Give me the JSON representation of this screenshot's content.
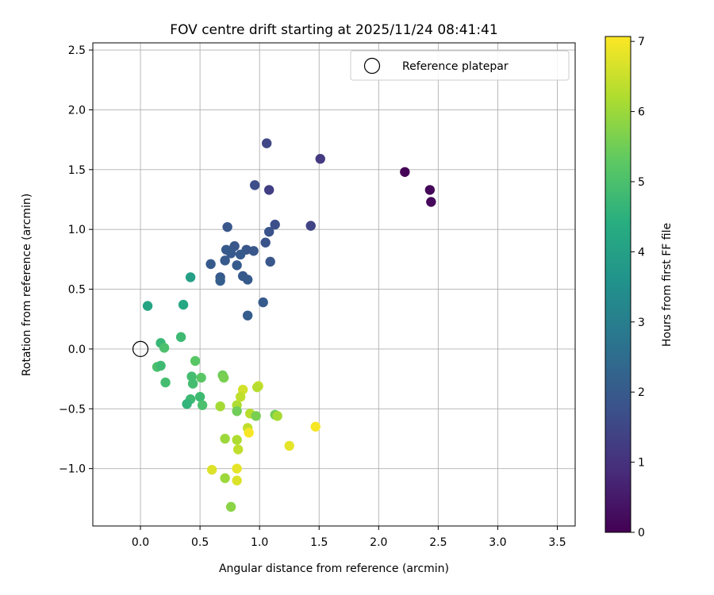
{
  "chart_data": {
    "type": "scatter",
    "title": "FOV centre drift starting at 2025/11/24 08:41:41",
    "xlabel": "Angular distance from reference (arcmin)",
    "ylabel": "Rotation from reference (arcmin)",
    "xlim": [
      -0.4,
      3.65
    ],
    "ylim": [
      -1.48,
      2.56
    ],
    "xticks": [
      0.0,
      0.5,
      1.0,
      1.5,
      2.0,
      2.5,
      3.0,
      3.5
    ],
    "xtick_labels": [
      "0.0",
      "0.5",
      "1.0",
      "1.5",
      "2.0",
      "2.5",
      "3.0",
      "3.5"
    ],
    "yticks": [
      -1.0,
      -0.5,
      0.0,
      0.5,
      1.0,
      1.5,
      2.0,
      2.5
    ],
    "ytick_labels": [
      "−1.0",
      "−0.5",
      "0.0",
      "0.5",
      "1.0",
      "1.5",
      "2.0",
      "2.5"
    ],
    "grid": true,
    "legend": {
      "position": "top-right",
      "label": "Reference platepar"
    },
    "reference_point": {
      "x": 0.0,
      "y": 0.0
    },
    "colorbar": {
      "label": "Hours from first FF file",
      "range": [
        0,
        7.07
      ],
      "ticks": [
        0,
        1,
        2,
        3,
        4,
        5,
        6,
        7
      ],
      "tick_labels": [
        "0",
        "1",
        "2",
        "3",
        "4",
        "5",
        "6",
        "7"
      ],
      "colormap": "viridis"
    },
    "points": [
      {
        "x": 2.22,
        "y": 1.48,
        "c": 0.05
      },
      {
        "x": 2.43,
        "y": 1.33,
        "c": 0.1
      },
      {
        "x": 2.44,
        "y": 1.23,
        "c": 0.15
      },
      {
        "x": 1.51,
        "y": 1.59,
        "c": 1.2
      },
      {
        "x": 1.06,
        "y": 1.72,
        "c": 1.5
      },
      {
        "x": 1.08,
        "y": 1.33,
        "c": 1.3
      },
      {
        "x": 0.96,
        "y": 1.37,
        "c": 1.7
      },
      {
        "x": 1.43,
        "y": 1.03,
        "c": 1.4
      },
      {
        "x": 1.13,
        "y": 1.04,
        "c": 1.7
      },
      {
        "x": 1.08,
        "y": 0.98,
        "c": 1.8
      },
      {
        "x": 1.05,
        "y": 0.89,
        "c": 1.8
      },
      {
        "x": 0.73,
        "y": 1.02,
        "c": 1.9
      },
      {
        "x": 0.79,
        "y": 0.86,
        "c": 1.9
      },
      {
        "x": 0.72,
        "y": 0.83,
        "c": 2.0
      },
      {
        "x": 0.89,
        "y": 0.83,
        "c": 1.9
      },
      {
        "x": 0.95,
        "y": 0.82,
        "c": 1.9
      },
      {
        "x": 0.76,
        "y": 0.8,
        "c": 2.0
      },
      {
        "x": 0.84,
        "y": 0.79,
        "c": 2.0
      },
      {
        "x": 0.71,
        "y": 0.74,
        "c": 2.0
      },
      {
        "x": 1.09,
        "y": 0.73,
        "c": 1.9
      },
      {
        "x": 0.59,
        "y": 0.71,
        "c": 2.0
      },
      {
        "x": 0.81,
        "y": 0.7,
        "c": 2.0
      },
      {
        "x": 0.67,
        "y": 0.6,
        "c": 2.0
      },
      {
        "x": 0.86,
        "y": 0.61,
        "c": 2.0
      },
      {
        "x": 0.9,
        "y": 0.58,
        "c": 2.0
      },
      {
        "x": 0.67,
        "y": 0.57,
        "c": 2.1
      },
      {
        "x": 1.03,
        "y": 0.39,
        "c": 2.0
      },
      {
        "x": 0.9,
        "y": 0.28,
        "c": 2.1
      },
      {
        "x": 0.42,
        "y": 0.6,
        "c": 4.0
      },
      {
        "x": 0.06,
        "y": 0.36,
        "c": 4.1
      },
      {
        "x": 0.36,
        "y": 0.37,
        "c": 4.2
      },
      {
        "x": 0.34,
        "y": 0.1,
        "c": 4.8
      },
      {
        "x": 0.17,
        "y": 0.05,
        "c": 4.7
      },
      {
        "x": 0.2,
        "y": 0.01,
        "c": 5.0
      },
      {
        "x": 0.14,
        "y": -0.15,
        "c": 5.0
      },
      {
        "x": 0.17,
        "y": -0.14,
        "c": 4.8
      },
      {
        "x": 0.21,
        "y": -0.28,
        "c": 4.9
      },
      {
        "x": 0.46,
        "y": -0.1,
        "c": 5.2
      },
      {
        "x": 0.43,
        "y": -0.23,
        "c": 4.9
      },
      {
        "x": 0.51,
        "y": -0.24,
        "c": 5.2
      },
      {
        "x": 0.44,
        "y": -0.29,
        "c": 4.9
      },
      {
        "x": 0.5,
        "y": -0.4,
        "c": 4.8
      },
      {
        "x": 0.42,
        "y": -0.42,
        "c": 4.8
      },
      {
        "x": 0.39,
        "y": -0.46,
        "c": 4.6
      },
      {
        "x": 0.52,
        "y": -0.47,
        "c": 5.0
      },
      {
        "x": 0.69,
        "y": -0.22,
        "c": 5.5
      },
      {
        "x": 0.7,
        "y": -0.24,
        "c": 5.6
      },
      {
        "x": 0.67,
        "y": -0.48,
        "c": 6.1
      },
      {
        "x": 0.81,
        "y": -0.47,
        "c": 6.2
      },
      {
        "x": 0.81,
        "y": -0.52,
        "c": 5.5
      },
      {
        "x": 0.86,
        "y": -0.34,
        "c": 6.6
      },
      {
        "x": 0.84,
        "y": -0.4,
        "c": 6.4
      },
      {
        "x": 0.99,
        "y": -0.31,
        "c": 6.5
      },
      {
        "x": 0.98,
        "y": -0.32,
        "c": 6.3
      },
      {
        "x": 0.92,
        "y": -0.54,
        "c": 6.3
      },
      {
        "x": 0.97,
        "y": -0.56,
        "c": 5.6
      },
      {
        "x": 1.13,
        "y": -0.55,
        "c": 5.5
      },
      {
        "x": 1.15,
        "y": -0.56,
        "c": 6.1
      },
      {
        "x": 0.9,
        "y": -0.66,
        "c": 6.4
      },
      {
        "x": 0.91,
        "y": -0.7,
        "c": 7.0
      },
      {
        "x": 1.47,
        "y": -0.65,
        "c": 7.0
      },
      {
        "x": 1.25,
        "y": -0.81,
        "c": 6.8
      },
      {
        "x": 0.71,
        "y": -0.75,
        "c": 6.0
      },
      {
        "x": 0.81,
        "y": -0.76,
        "c": 6.2
      },
      {
        "x": 0.82,
        "y": -0.84,
        "c": 6.4
      },
      {
        "x": 0.6,
        "y": -1.01,
        "c": 6.7
      },
      {
        "x": 0.81,
        "y": -1.0,
        "c": 6.8
      },
      {
        "x": 0.71,
        "y": -1.08,
        "c": 6.0
      },
      {
        "x": 0.81,
        "y": -1.1,
        "c": 6.7
      },
      {
        "x": 0.76,
        "y": -1.32,
        "c": 5.8
      }
    ]
  }
}
